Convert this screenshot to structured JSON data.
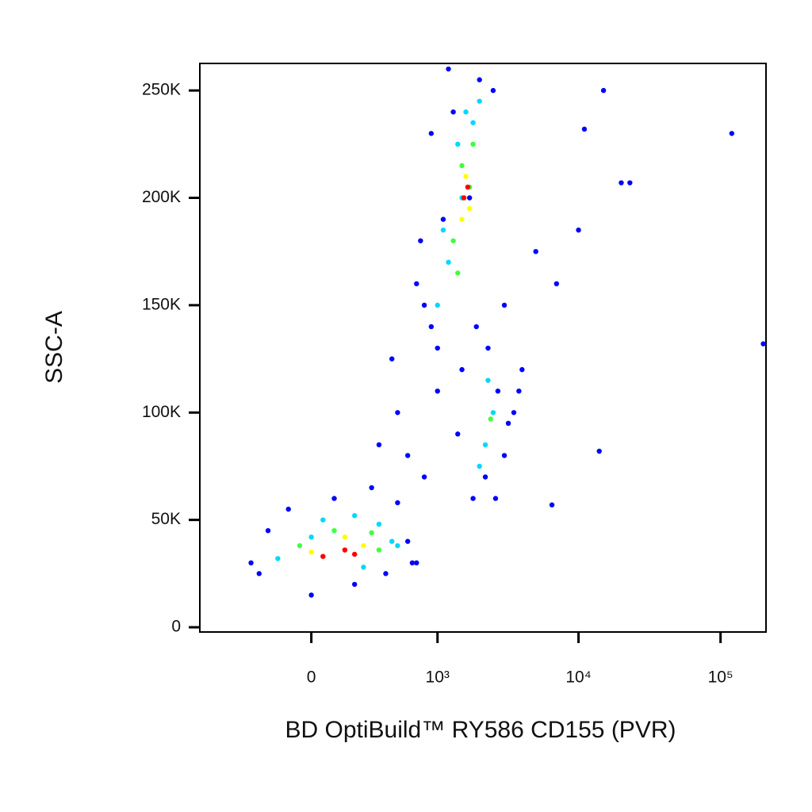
{
  "chart_data": {
    "type": "scatter",
    "x_label": "BD OptiBuild™ RY586 CD155 (PVR)",
    "y_label": "SSC-A",
    "xscale": "biexponential",
    "xlim": [
      -780,
      209000
    ],
    "ylim": [
      -2200,
      262600
    ],
    "xticks": [
      0,
      {
        "value": 1000,
        "label": "10³"
      },
      {
        "value": 10000,
        "label": "10⁴"
      },
      {
        "value": 100000,
        "label": "10⁵"
      }
    ],
    "yticks": [
      0,
      {
        "value": 50000,
        "label": "50K"
      },
      {
        "value": 100000,
        "label": "100K"
      },
      {
        "value": 150000,
        "label": "150K"
      },
      {
        "value": 200000,
        "label": "200K"
      },
      {
        "value": 250000,
        "label": "250K"
      }
    ],
    "series": [
      {
        "color": "#0000ff",
        "x": [
          -300,
          -200,
          -100,
          100,
          300,
          500,
          600,
          700,
          400,
          200,
          -250,
          0,
          800,
          1000,
          900,
          700,
          600,
          1100,
          1300,
          2000,
          2500,
          3000,
          2700,
          2200,
          1800,
          1500,
          1700,
          3500,
          3000,
          4000,
          1200,
          900,
          750,
          800,
          1000,
          1400,
          2600,
          2300,
          1900,
          3200,
          5000,
          7000,
          15000,
          20000,
          23000,
          11000,
          10000,
          120000,
          200000,
          14000,
          6500,
          3800,
          500,
          350,
          450,
          650
        ],
        "y": [
          30000,
          45000,
          55000,
          60000,
          65000,
          58000,
          40000,
          30000,
          25000,
          20000,
          25000,
          15000,
          70000,
          110000,
          140000,
          160000,
          80000,
          190000,
          240000,
          255000,
          250000,
          150000,
          110000,
          70000,
          60000,
          120000,
          200000,
          100000,
          80000,
          120000,
          260000,
          230000,
          180000,
          150000,
          130000,
          90000,
          60000,
          130000,
          140000,
          95000,
          175000,
          160000,
          250000,
          207000,
          207000,
          232000,
          185000,
          230000,
          132000,
          82000,
          57000,
          110000,
          100000,
          85000,
          125000,
          30000
        ]
      },
      {
        "color": "#00d8ff",
        "x": [
          -150,
          0,
          50,
          200,
          350,
          450,
          500,
          250,
          1000,
          1200,
          1500,
          1800,
          2000,
          1400,
          1100,
          2200,
          2500,
          2300,
          2000,
          1600
        ],
        "y": [
          32000,
          42000,
          50000,
          52000,
          48000,
          40000,
          38000,
          28000,
          150000,
          170000,
          200000,
          235000,
          245000,
          225000,
          185000,
          85000,
          100000,
          115000,
          75000,
          240000
        ]
      },
      {
        "color": "#40ff40",
        "x": [
          -50,
          100,
          300,
          350,
          1300,
          1500,
          1700,
          1800,
          2400,
          1400
        ],
        "y": [
          38000,
          45000,
          44000,
          36000,
          180000,
          215000,
          205000,
          225000,
          97000,
          165000
        ]
      },
      {
        "color": "#ffff00",
        "x": [
          0,
          150,
          250,
          1500,
          1600,
          1700
        ],
        "y": [
          35000,
          42000,
          38000,
          190000,
          210000,
          195000
        ]
      },
      {
        "color": "#ff0000",
        "x": [
          50,
          150,
          200,
          1550,
          1650
        ],
        "y": [
          33000,
          36000,
          34000,
          200000,
          205000
        ]
      }
    ]
  }
}
